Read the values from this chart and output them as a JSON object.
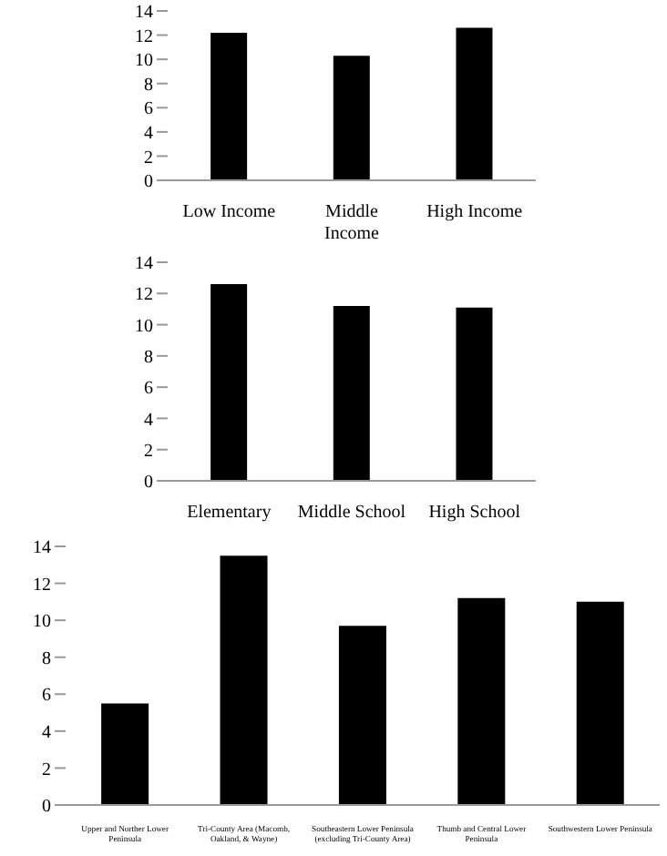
{
  "chart_data": [
    {
      "type": "bar",
      "categories": [
        "Low Income",
        "Middle Income",
        "High Income"
      ],
      "values": [
        12.2,
        10.3,
        12.6
      ],
      "color": "#000000",
      "ylim": [
        0,
        14
      ],
      "yticks": [
        0,
        2,
        4,
        6,
        8,
        10,
        12,
        14
      ],
      "grid": false,
      "legend": false
    },
    {
      "type": "bar",
      "categories": [
        "Elementary",
        "Middle School",
        "High School"
      ],
      "values": [
        12.6,
        11.2,
        11.1
      ],
      "color": "#000000",
      "ylim": [
        0,
        14
      ],
      "yticks": [
        0,
        2,
        4,
        6,
        8,
        10,
        12,
        14
      ],
      "grid": false,
      "legend": false
    },
    {
      "type": "bar",
      "categories": [
        "Upper and Norther Lower Peninsula",
        "Tri-County Area (Macomb, Oakland, & Wayne)",
        "Southeastern Lower Peninsula (excluding Tri-County Area)",
        "Thumb and Central Lower Peninsula",
        "Southwestern Lower Peninsula"
      ],
      "values": [
        5.5,
        13.5,
        9.7,
        11.2,
        11.0
      ],
      "color": "#000000",
      "ylim": [
        0,
        14
      ],
      "yticks": [
        0,
        2,
        4,
        6,
        8,
        10,
        12,
        14
      ],
      "grid": false,
      "legend": false
    }
  ]
}
